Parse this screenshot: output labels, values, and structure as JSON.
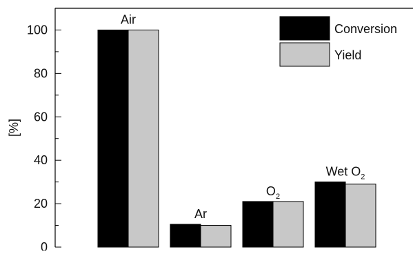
{
  "chart_data": {
    "type": "bar",
    "title": "",
    "xlabel": "",
    "ylabel": "[%]",
    "ylim": [
      0,
      110
    ],
    "yticks": [
      0,
      20,
      40,
      60,
      80,
      100
    ],
    "grid": false,
    "legend_position": "top-right",
    "categories": [
      {
        "text": "Air",
        "sub": ""
      },
      {
        "text": "Ar",
        "sub": ""
      },
      {
        "text": "O",
        "sub": "2"
      },
      {
        "text": "Wet O",
        "sub": "2"
      }
    ],
    "series": [
      {
        "name": "Conversion",
        "color": "#000000",
        "values": [
          100,
          10.5,
          21,
          30
        ]
      },
      {
        "name": "Yield",
        "color": "#c8c8c8",
        "values": [
          100,
          10,
          21,
          29
        ]
      }
    ]
  }
}
